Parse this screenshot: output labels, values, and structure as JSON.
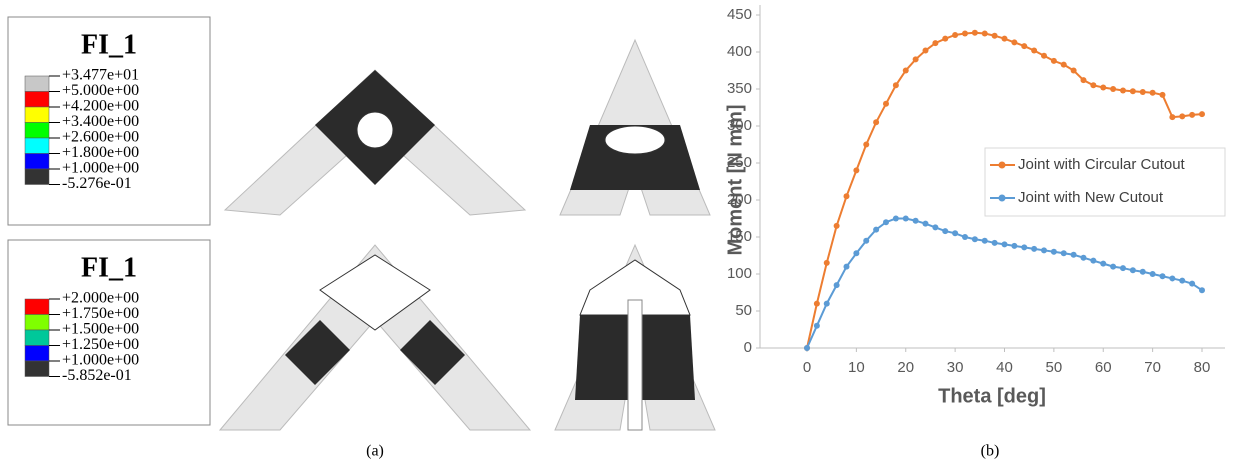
{
  "contour_legends": [
    {
      "title": "FI_1",
      "labels": [
        "+3.477e+01",
        "+5.000e+00",
        "+4.200e+00",
        "+3.400e+00",
        "+2.600e+00",
        "+1.800e+00",
        "+1.000e+00",
        "-5.276e-01"
      ],
      "colors": [
        "#c8c8c8",
        "#ff0000",
        "#ffff00",
        "#00ff00",
        "#00ffff",
        "#0000ff",
        "#333333"
      ]
    },
    {
      "title": "FI_1",
      "labels": [
        "+2.000e+00",
        "+1.750e+00",
        "+1.500e+00",
        "+1.250e+00",
        "+1.000e+00",
        "-5.852e-01"
      ],
      "colors": [
        "#ff0000",
        "#7fff00",
        "#00c89a",
        "#0000ff",
        "#333333"
      ]
    }
  ],
  "captions": [
    "(a)",
    "(b)"
  ],
  "chart_data": {
    "type": "line",
    "x_label": "Theta [deg]",
    "y_label": "Moment [N mm]",
    "x": [
      0,
      2,
      4,
      6,
      8,
      10,
      12,
      14,
      16,
      18,
      20,
      22,
      24,
      26,
      28,
      30,
      32,
      34,
      36,
      38,
      40,
      42,
      44,
      46,
      48,
      50,
      52,
      54,
      56,
      58,
      60,
      62,
      64,
      66,
      68,
      70,
      72,
      74,
      76,
      78,
      80
    ],
    "series": [
      {
        "name": "Joint with Circular Cutout",
        "color": "#ed7d31",
        "values": [
          0,
          60,
          115,
          165,
          205,
          240,
          275,
          305,
          330,
          355,
          375,
          390,
          402,
          412,
          418,
          423,
          425,
          426,
          425,
          422,
          418,
          413,
          408,
          402,
          395,
          388,
          383,
          375,
          362,
          355,
          352,
          350,
          348,
          347,
          346,
          345,
          342,
          312,
          313,
          315,
          316
        ]
      },
      {
        "name": "Joint with New Cutout",
        "color": "#5b9bd5",
        "values": [
          0,
          30,
          60,
          85,
          110,
          128,
          145,
          160,
          170,
          175,
          175,
          172,
          168,
          163,
          158,
          155,
          150,
          147,
          145,
          142,
          140,
          138,
          136,
          134,
          132,
          130,
          128,
          126,
          122,
          118,
          114,
          110,
          108,
          105,
          103,
          100,
          97,
          94,
          91,
          87,
          78
        ]
      }
    ],
    "xlim": [
      0,
      80
    ],
    "ylim": [
      0,
      450
    ],
    "xticks": [
      0,
      10,
      20,
      30,
      40,
      50,
      60,
      70,
      80
    ],
    "yticks": [
      0,
      50,
      100,
      150,
      200,
      250,
      300,
      350,
      400,
      450
    ],
    "grid": false,
    "legend": "center-right"
  }
}
